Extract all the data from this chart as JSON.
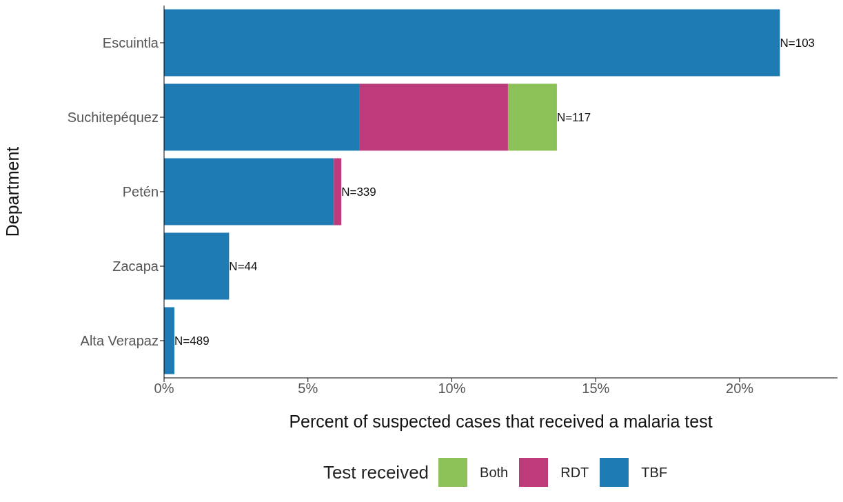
{
  "chart_data": {
    "type": "bar",
    "orientation": "horizontal",
    "stacked": true,
    "xlabel": "Percent of suspected cases that received a malaria test",
    "ylabel": "Department",
    "legend_title": "Test received",
    "legend": "bottom",
    "categories": [
      "Escuintla",
      "Suchitepéquez",
      "Petén",
      "Zacapa",
      "Alta Verapaz"
    ],
    "series": [
      {
        "name": "TBF",
        "color": "#1f7bb4",
        "values": [
          21.4,
          6.8,
          5.9,
          2.26,
          0.36
        ]
      },
      {
        "name": "RDT",
        "color": "#bd3b7b",
        "values": [
          null,
          5.15,
          0.26,
          null,
          null
        ]
      },
      {
        "name": "Both",
        "color": "#8bc156",
        "values": [
          null,
          1.7,
          null,
          null,
          null
        ]
      }
    ],
    "xlim": [
      0,
      23.4
    ],
    "xticks": [
      {
        "value": 0,
        "label": "0%"
      },
      {
        "value": 5,
        "label": "5%"
      },
      {
        "value": 10,
        "label": "10%"
      },
      {
        "value": 15,
        "label": "15%"
      },
      {
        "value": 20,
        "label": "20%"
      }
    ],
    "grid": false,
    "annotations": [
      {
        "text": "N=103",
        "x": 21.4,
        "y": "Escuintla"
      },
      {
        "text": "N=117",
        "x": 13.65,
        "y": "Suchitepéquez"
      },
      {
        "text": "N=339",
        "x": 6.16,
        "y": "Petén"
      },
      {
        "text": "N=44",
        "x": 2.26,
        "y": "Zacapa"
      },
      {
        "text": "N=489",
        "x": 0.36,
        "y": "Alta Verapaz"
      }
    ]
  }
}
